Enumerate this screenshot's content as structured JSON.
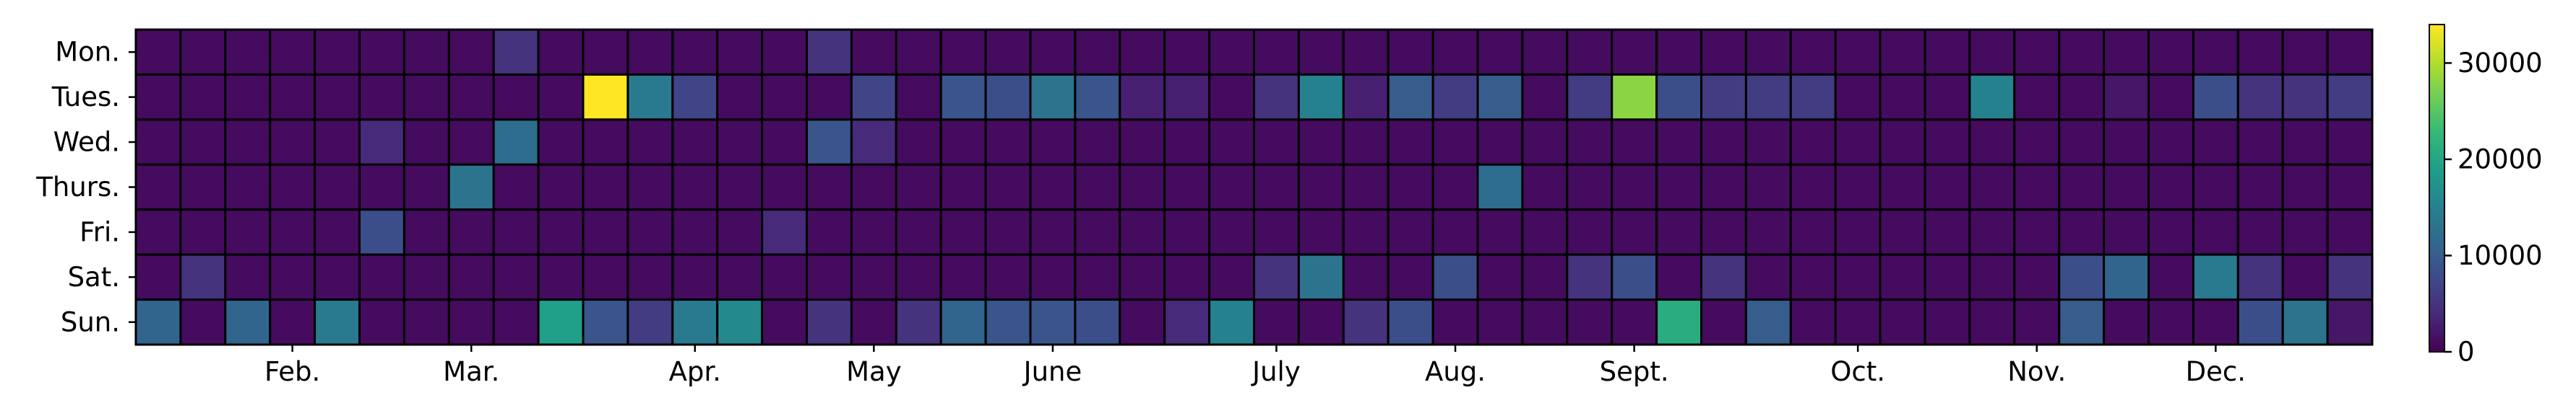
{
  "chart_data": {
    "type": "heatmap",
    "title": "",
    "xlabel": "",
    "ylabel": "",
    "weeks": 50,
    "row_labels": [
      "Mon.",
      "Tues.",
      "Wed.",
      "Thurs.",
      "Fri.",
      "Sat.",
      "Sun."
    ],
    "month_labels": [
      {
        "label": "Feb.",
        "week": 3.5
      },
      {
        "label": "Mar.",
        "week": 7.5
      },
      {
        "label": "Apr.",
        "week": 12.5
      },
      {
        "label": "May",
        "week": 16.5
      },
      {
        "label": "June",
        "week": 20.5
      },
      {
        "label": "July",
        "week": 25.5
      },
      {
        "label": "Aug.",
        "week": 29.5
      },
      {
        "label": "Sept.",
        "week": 33.5
      },
      {
        "label": "Oct.",
        "week": 38.5
      },
      {
        "label": "Nov.",
        "week": 42.5
      },
      {
        "label": "Dec.",
        "week": 46.5
      }
    ],
    "colorbar": {
      "colormap": "viridis",
      "range": [
        0,
        34000
      ],
      "ticks": [
        0,
        10000,
        20000,
        30000
      ]
    },
    "values": [
      [
        1000,
        1000,
        1000,
        1000,
        1000,
        1000,
        1000,
        1000,
        5000,
        1000,
        1000,
        1000,
        1000,
        1000,
        1000,
        5000,
        1000,
        1000,
        1000,
        1000,
        1000,
        1000,
        1000,
        1000,
        1000,
        1000,
        1000,
        1000,
        1000,
        1000,
        1000,
        1000,
        1000,
        1000,
        1000,
        1000,
        1000,
        1000,
        1000,
        1000,
        1000,
        1000,
        1000,
        1000,
        1000,
        1000,
        1000,
        1000,
        1000,
        1000
      ],
      [
        1000,
        1000,
        1000,
        1000,
        1000,
        1000,
        1000,
        1000,
        1000,
        1000,
        34000,
        14000,
        7000,
        1000,
        1000,
        1000,
        7000,
        1000,
        9000,
        8000,
        13000,
        9000,
        3000,
        3000,
        1000,
        5000,
        15000,
        3000,
        10000,
        6000,
        10000,
        1000,
        6000,
        28000,
        8000,
        6000,
        6000,
        6000,
        1000,
        1000,
        1000,
        15000,
        1000,
        1000,
        2000,
        1000,
        8000,
        5000,
        5000,
        6000
      ],
      [
        1000,
        1000,
        1000,
        1000,
        1000,
        4000,
        1000,
        1000,
        12000,
        1000,
        1000,
        1000,
        1000,
        1000,
        1000,
        9000,
        4000,
        1000,
        1000,
        1000,
        1000,
        1000,
        1000,
        1000,
        1000,
        1000,
        1000,
        1000,
        1000,
        1000,
        1000,
        1000,
        1000,
        1000,
        1000,
        1000,
        1000,
        1000,
        1000,
        1000,
        1000,
        1000,
        1000,
        1000,
        1000,
        1000,
        1000,
        1000,
        1000,
        1000
      ],
      [
        1000,
        1000,
        1000,
        1000,
        1000,
        1000,
        1000,
        13000,
        1000,
        1000,
        1000,
        1000,
        1000,
        1000,
        1000,
        1000,
        1000,
        1000,
        1000,
        1000,
        1000,
        1000,
        1000,
        1000,
        1000,
        1000,
        1000,
        1000,
        1000,
        1000,
        12000,
        1000,
        1000,
        1000,
        1000,
        1000,
        1000,
        1000,
        1000,
        1000,
        1000,
        1000,
        1000,
        1000,
        1000,
        1000,
        1000,
        1000,
        1000,
        1000
      ],
      [
        1000,
        1000,
        1000,
        1000,
        1000,
        8000,
        1000,
        1000,
        1000,
        1000,
        1000,
        1000,
        1000,
        1000,
        4000,
        1000,
        1000,
        1000,
        1000,
        1000,
        1000,
        1000,
        1000,
        1000,
        1000,
        1000,
        1000,
        1000,
        1000,
        1000,
        1000,
        1000,
        1000,
        1000,
        1000,
        1000,
        1000,
        1000,
        1000,
        1000,
        1000,
        1000,
        1000,
        1000,
        1000,
        1000,
        1000,
        1000,
        1000,
        1000
      ],
      [
        1000,
        5000,
        1000,
        1000,
        1000,
        1000,
        1000,
        1000,
        1000,
        1000,
        1000,
        1000,
        1000,
        1000,
        1000,
        1000,
        1000,
        1000,
        1000,
        1000,
        1000,
        1000,
        1000,
        1000,
        1000,
        5000,
        13000,
        1000,
        1000,
        8000,
        1000,
        1000,
        5000,
        8000,
        1000,
        5000,
        1000,
        1000,
        1000,
        1000,
        1000,
        1000,
        1000,
        8000,
        11000,
        1000,
        14000,
        5000,
        1000,
        5000
      ],
      [
        11000,
        1000,
        11000,
        1000,
        14000,
        1000,
        1000,
        1000,
        1000,
        19000,
        9000,
        6000,
        14000,
        16000,
        1000,
        5000,
        1000,
        5000,
        11000,
        9000,
        9000,
        8000,
        1000,
        4000,
        15000,
        1000,
        1000,
        5000,
        8000,
        1000,
        1000,
        1000,
        1000,
        1000,
        21000,
        1000,
        10000,
        1000,
        1000,
        1000,
        1000,
        1000,
        1000,
        10000,
        1000,
        1000,
        1000,
        8000,
        13000,
        2000
      ]
    ]
  }
}
